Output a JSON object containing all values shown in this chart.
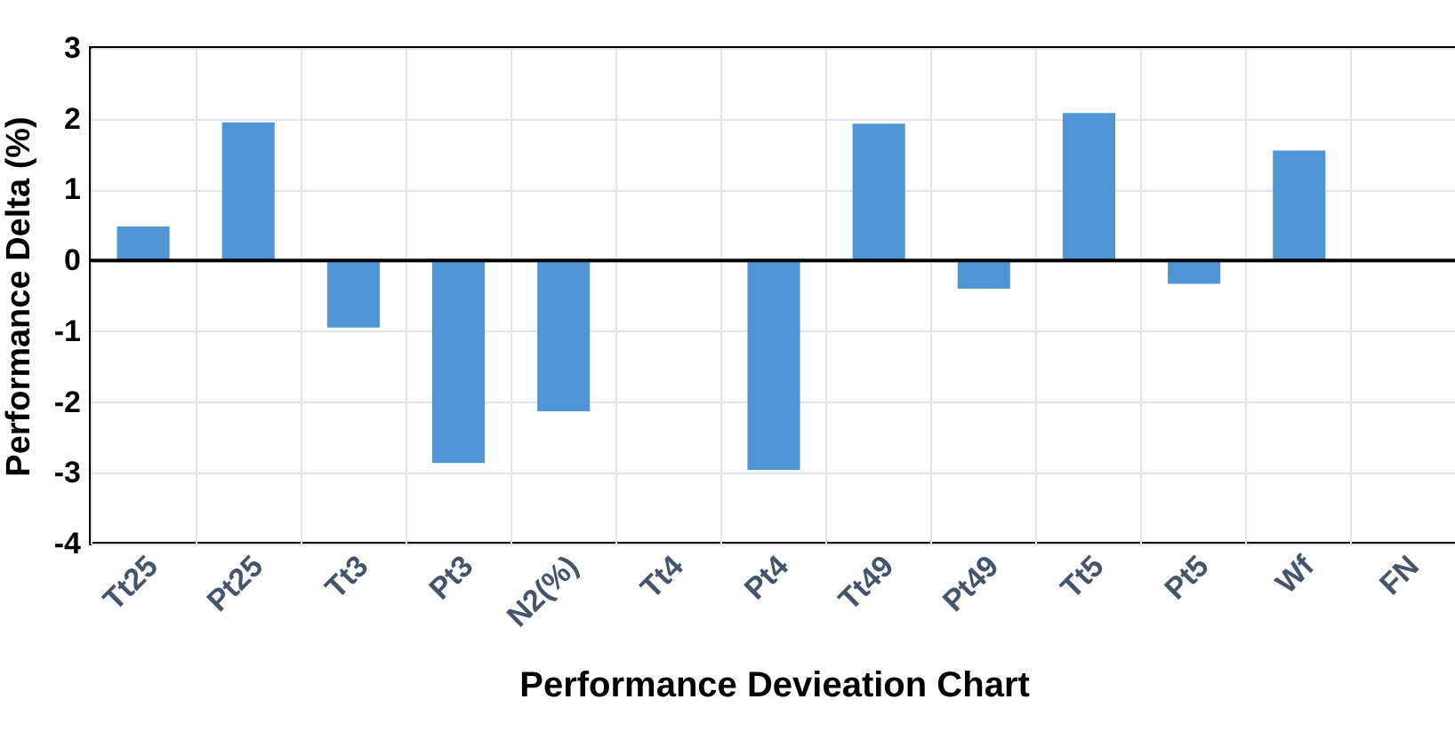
{
  "chart_data": {
    "type": "bar",
    "xlabel": "Performance Devieation Chart",
    "ylabel": "Performance Delta (%)",
    "categories": [
      "Tt25",
      "Pt25",
      "Tt3",
      "Pt3",
      "N2(%)",
      "Tt4",
      "Pt4",
      "Tt49",
      "Pt49",
      "Tt5",
      "Pt5",
      "Wf",
      "FN"
    ],
    "values": [
      0.48,
      1.95,
      -0.95,
      -2.86,
      -2.13,
      null,
      -2.96,
      1.93,
      -0.4,
      2.08,
      -0.33,
      1.55,
      null
    ],
    "color": "#4f94d4",
    "ylim": [
      -4,
      3
    ],
    "yticks": [
      -4,
      -3,
      -2,
      -1,
      0,
      1,
      2,
      3
    ],
    "grid": true
  }
}
